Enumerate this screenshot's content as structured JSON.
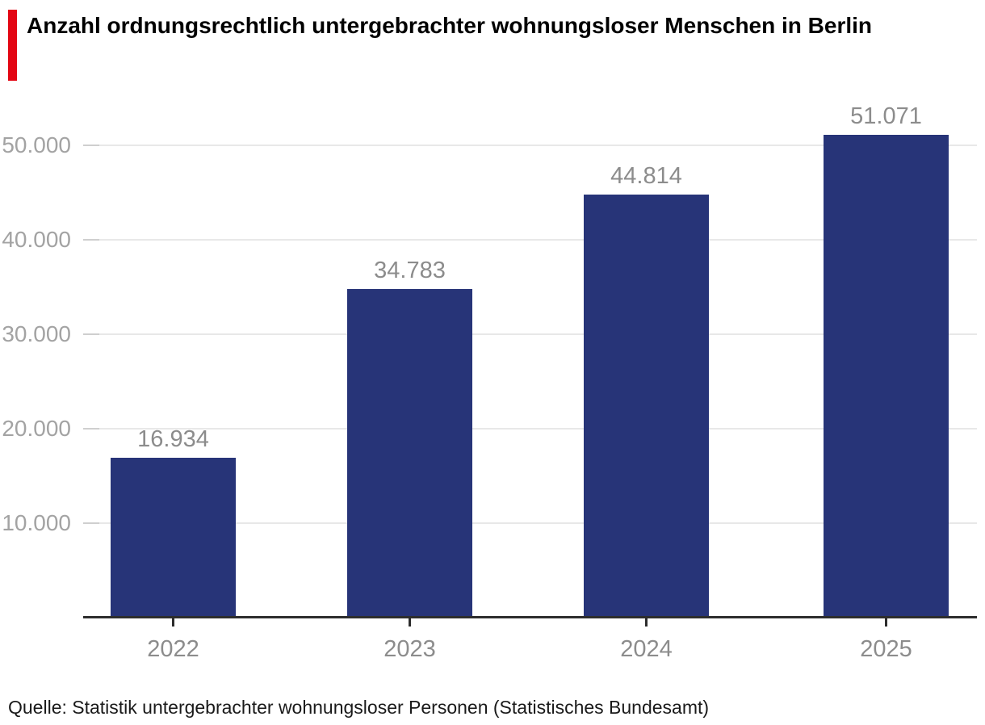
{
  "header": {
    "title": "Anzahl ordnungsrechtlich untergebrachter wohnungsloser Menschen in Berlin",
    "accent_color": "#E30613"
  },
  "chart_data": {
    "type": "bar",
    "title": "Anzahl ordnungsrechtlich untergebrachter wohnungsloser Menschen in Berlin",
    "categories": [
      "2022",
      "2023",
      "2024",
      "2025"
    ],
    "values": [
      16934,
      34783,
      44814,
      51071
    ],
    "value_labels": [
      "16.934",
      "34.783",
      "44.814",
      "51.071"
    ],
    "xlabel": "",
    "ylabel": "",
    "ylim": [
      0,
      55000
    ],
    "yticks": [
      {
        "value": 10000,
        "label": "10.000"
      },
      {
        "value": 20000,
        "label": "20.000"
      },
      {
        "value": 30000,
        "label": "30.000"
      },
      {
        "value": 40000,
        "label": "40.000"
      },
      {
        "value": 50000,
        "label": "50.000"
      }
    ],
    "grid": "horizontal",
    "legend": "none",
    "colors": {
      "bar": "#273478",
      "axis": "#2d2d2d",
      "gridline": "#e8e8e8",
      "gridline_tick_segment": "#cfcfcf",
      "ytick_label": "#a3a3a3",
      "xtick_label": "#8c8c8c",
      "value_label": "#8c8c8c"
    }
  },
  "footer": {
    "source": "Quelle: Statistik untergebrachter wohnungsloser Personen (Statistisches Bundesamt)"
  }
}
